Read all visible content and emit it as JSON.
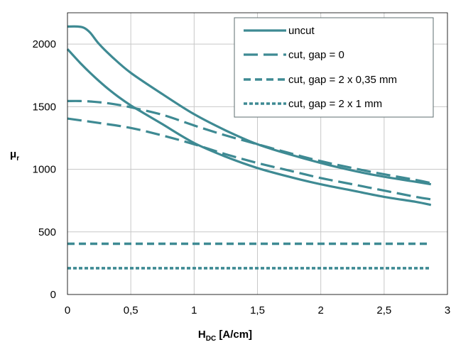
{
  "chart_data": {
    "type": "line",
    "xlabel_main": "H",
    "xlabel_sub": "DC",
    "xlabel_unit": " [A/cm]",
    "ylabel_main": "μ",
    "ylabel_sub": "r",
    "xlim": [
      0,
      3
    ],
    "ylim": [
      0,
      2250
    ],
    "x_ticks": [
      0,
      0.5,
      1,
      1.5,
      2,
      2.5,
      3
    ],
    "x_tick_labels": [
      "0",
      "0,5",
      "1",
      "1,5",
      "2",
      "2,5",
      "3"
    ],
    "y_ticks": [
      0,
      500,
      1000,
      1500,
      2000
    ],
    "y_tick_labels": [
      "0",
      "500",
      "1000",
      "1500",
      "2000"
    ],
    "grid": true,
    "legend_position": "top-right",
    "color": "#3e8a93",
    "series": [
      {
        "name": "uncut",
        "style": "solid",
        "branches": [
          {
            "x": [
              0,
              0.08,
              0.13,
              0.18,
              0.25,
              0.35,
              0.5,
              0.75,
              1.0,
              1.25,
              1.5,
              1.75,
              2.0,
              2.25,
              2.5,
              2.75,
              2.87
            ],
            "y": [
              2140,
              2140,
              2130,
              2090,
              2000,
              1900,
              1770,
              1600,
              1440,
              1310,
              1200,
              1120,
              1050,
              990,
              940,
              900,
              880
            ]
          },
          {
            "x": [
              0,
              0.1,
              0.2,
              0.3,
              0.4,
              0.5,
              0.6,
              0.75,
              1.0,
              1.25,
              1.5,
              1.75,
              2.0,
              2.25,
              2.5,
              2.75,
              2.87
            ],
            "y": [
              1960,
              1850,
              1750,
              1660,
              1580,
              1510,
              1450,
              1360,
              1210,
              1100,
              1010,
              940,
              880,
              830,
              780,
              740,
              715
            ]
          }
        ]
      },
      {
        "name": "cut, gap = 0",
        "style": "long-dash",
        "branches": [
          {
            "x": [
              0,
              0.1,
              0.2,
              0.3,
              0.4,
              0.5,
              0.75,
              1.0,
              1.25,
              1.5,
              1.75,
              2.0,
              2.25,
              2.5,
              2.75,
              2.87
            ],
            "y": [
              1545,
              1545,
              1540,
              1530,
              1515,
              1495,
              1435,
              1350,
              1270,
              1200,
              1130,
              1065,
              1010,
              960,
              915,
              890
            ]
          },
          {
            "x": [
              0,
              0.25,
              0.5,
              0.75,
              1.0,
              1.25,
              1.5,
              1.75,
              2.0,
              2.25,
              2.5,
              2.75,
              2.87
            ],
            "y": [
              1405,
              1370,
              1330,
              1270,
              1200,
              1120,
              1050,
              990,
              930,
              880,
              830,
              780,
              760
            ]
          }
        ]
      },
      {
        "name": "cut, gap = 2 x 0,35 mm",
        "style": "medium-dash",
        "branches": [
          {
            "x": [
              0,
              2.87
            ],
            "y": [
              405,
              405
            ]
          }
        ]
      },
      {
        "name": "cut, gap = 2 x 1 mm",
        "style": "short-dash",
        "branches": [
          {
            "x": [
              0,
              2.87
            ],
            "y": [
              210,
              210
            ]
          }
        ]
      }
    ]
  }
}
